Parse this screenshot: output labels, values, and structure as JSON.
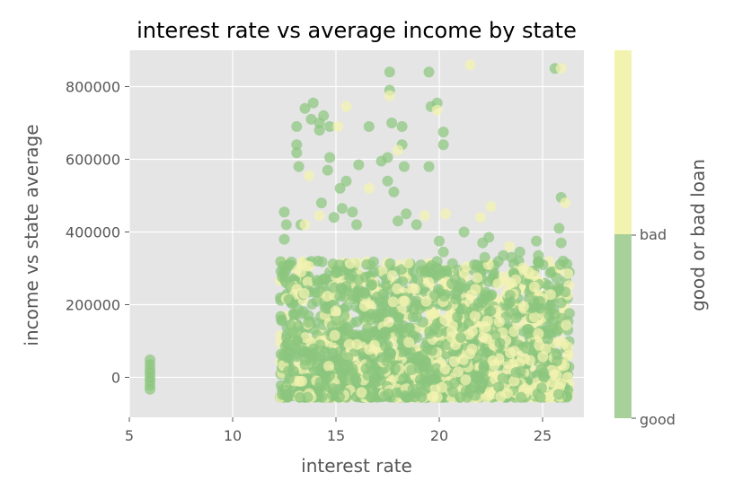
{
  "chart_data": {
    "type": "scatter",
    "title": "interest rate vs average income by state",
    "xlabel": "interest rate",
    "ylabel": "income vs state average",
    "xlim": [
      5,
      27
    ],
    "ylim": [
      -110000,
      900000
    ],
    "x_ticks": [
      5,
      10,
      15,
      20,
      25
    ],
    "y_ticks": [
      0,
      200000,
      400000,
      600000,
      800000
    ],
    "x_tick_labels": [
      "5",
      "10",
      "15",
      "20",
      "25"
    ],
    "y_tick_labels": [
      "0",
      "200000",
      "400000",
      "600000",
      "800000"
    ],
    "grid": true,
    "plot_background": "#e5e5e5",
    "colorbar": {
      "label": "good or bad loan",
      "ticks": [
        "good",
        "bad"
      ],
      "colors": {
        "good": "#8cc67e",
        "bad": "#f3f3b0"
      }
    },
    "series": [
      {
        "name": "good",
        "color": "#8cc67e",
        "points": [
          [
            6.0,
            48000
          ],
          [
            6.0,
            35000
          ],
          [
            6.0,
            22000
          ],
          [
            6.0,
            12000
          ],
          [
            6.0,
            0
          ],
          [
            6.0,
            -10000
          ],
          [
            6.0,
            -22000
          ],
          [
            6.0,
            -33000
          ],
          [
            12.5,
            455000
          ],
          [
            12.6,
            420000
          ],
          [
            12.5,
            380000
          ],
          [
            12.7,
            310000
          ],
          [
            13.1,
            640000
          ],
          [
            13.1,
            618000
          ],
          [
            13.2,
            580000
          ],
          [
            13.1,
            690000
          ],
          [
            13.3,
            420000
          ],
          [
            13.5,
            740000
          ],
          [
            13.9,
            755000
          ],
          [
            13.8,
            710000
          ],
          [
            14.2,
            700000
          ],
          [
            14.2,
            680000
          ],
          [
            14.4,
            720000
          ],
          [
            14.7,
            690000
          ],
          [
            14.7,
            605000
          ],
          [
            14.6,
            570000
          ],
          [
            14.3,
            480000
          ],
          [
            14.9,
            440000
          ],
          [
            15.2,
            520000
          ],
          [
            15.5,
            540000
          ],
          [
            15.3,
            465000
          ],
          [
            15.8,
            455000
          ],
          [
            16.0,
            420000
          ],
          [
            16.1,
            585000
          ],
          [
            16.6,
            690000
          ],
          [
            17.2,
            595000
          ],
          [
            17.5,
            605000
          ],
          [
            17.6,
            840000
          ],
          [
            17.6,
            790000
          ],
          [
            17.7,
            700000
          ],
          [
            17.8,
            510000
          ],
          [
            17.5,
            540000
          ],
          [
            18.2,
            690000
          ],
          [
            18.2,
            640000
          ],
          [
            18.3,
            580000
          ],
          [
            18.0,
            430000
          ],
          [
            18.4,
            450000
          ],
          [
            18.9,
            420000
          ],
          [
            19.5,
            840000
          ],
          [
            19.6,
            745000
          ],
          [
            19.9,
            755000
          ],
          [
            19.5,
            580000
          ],
          [
            20.2,
            675000
          ],
          [
            20.2,
            640000
          ],
          [
            20.0,
            375000
          ],
          [
            20.2,
            345000
          ],
          [
            21.2,
            400000
          ],
          [
            21.7,
            310000
          ],
          [
            22.1,
            370000
          ],
          [
            22.4,
            385000
          ],
          [
            22.2,
            330000
          ],
          [
            23.1,
            335000
          ],
          [
            23.5,
            330000
          ],
          [
            23.9,
            345000
          ],
          [
            24.7,
            375000
          ],
          [
            24.8,
            335000
          ],
          [
            25.6,
            850000
          ],
          [
            25.9,
            495000
          ],
          [
            25.8,
            410000
          ],
          [
            25.9,
            370000
          ],
          [
            26.0,
            320000
          ],
          [
            26.1,
            235000
          ],
          [
            25.9,
            205000
          ]
        ]
      },
      {
        "name": "bad",
        "color": "#f3f3b0",
        "points": [
          [
            13.5,
            420000
          ],
          [
            13.7,
            555000
          ],
          [
            14.2,
            445000
          ],
          [
            15.1,
            690000
          ],
          [
            15.5,
            745000
          ],
          [
            16.6,
            520000
          ],
          [
            17.6,
            775000
          ],
          [
            18.0,
            625000
          ],
          [
            19.3,
            445000
          ],
          [
            19.9,
            735000
          ],
          [
            20.3,
            450000
          ],
          [
            21.5,
            860000
          ],
          [
            22.0,
            440000
          ],
          [
            22.5,
            470000
          ],
          [
            23.4,
            360000
          ],
          [
            24.6,
            280000
          ],
          [
            25.9,
            850000
          ],
          [
            26.1,
            480000
          ]
        ]
      }
    ],
    "dense_cluster": {
      "x_range": [
        12.3,
        26.3
      ],
      "y_range": [
        -55000,
        320000
      ],
      "note": "thousands of overlapping good and bad loans"
    }
  }
}
